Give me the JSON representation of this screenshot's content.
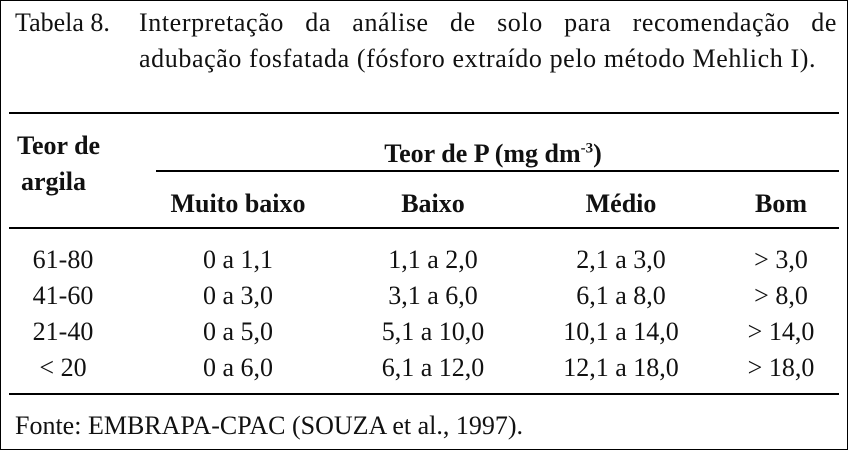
{
  "caption": {
    "label": "Tabela 8.",
    "text": "Interpretação da análise de solo para recomendação de adubação fosfatada (fósforo extraído pelo método Mehlich I)."
  },
  "table": {
    "row_header": [
      "Teor de",
      "argila"
    ],
    "group_header": {
      "text": "Teor de P (mg dm",
      "superscript": "-3",
      "suffix": ")"
    },
    "columns": [
      "Muito baixo",
      "Baixo",
      "Médio",
      "Bom"
    ],
    "rows": [
      [
        "61-80",
        "0 a 1,1",
        "1,1 a 2,0",
        "2,1 a 3,0",
        "> 3,0"
      ],
      [
        "41-60",
        "0 a 3,0",
        "3,1 a 6,0",
        "6,1 a 8,0",
        "> 8,0"
      ],
      [
        "21-40",
        "0 a 5,0",
        "5,1 a 10,0",
        "10,1 a 14,0",
        "> 14,0"
      ],
      [
        "< 20",
        "0 a 6,0",
        "6,1 a 12,0",
        "12,1 a 18,0",
        "> 18,0"
      ]
    ]
  },
  "source": "Fonte: EMBRAPA-CPAC (SOUZA et al., 1997)."
}
